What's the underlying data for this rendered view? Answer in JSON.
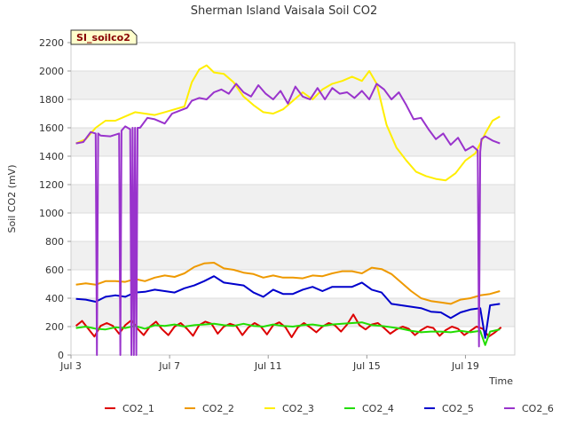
{
  "chart_data": {
    "type": "line",
    "title": "Sherman Island Vaisala Soil CO2",
    "ylabel": "Soil CO2 (mV)",
    "xlabel": "Time",
    "tag": "SI_soilco2",
    "ylim": [
      0,
      2200
    ],
    "yticks": [
      0,
      200,
      400,
      600,
      800,
      1000,
      1200,
      1400,
      1600,
      1800,
      2000,
      2200
    ],
    "xlim": [
      3.0,
      21.0
    ],
    "xticks": [
      {
        "value": 3,
        "label": "Jul 3"
      },
      {
        "value": 7,
        "label": "Jul 7"
      },
      {
        "value": 11,
        "label": "Jul 11"
      },
      {
        "value": 15,
        "label": "Jul 15"
      },
      {
        "value": 19,
        "label": "Jul 19"
      }
    ],
    "grid": true,
    "legend_position": "bottom",
    "series": [
      {
        "name": "CO2_1",
        "color": "#dd0000",
        "x": [
          3.2,
          3.45,
          3.7,
          3.95,
          4.2,
          4.45,
          4.7,
          4.95,
          5.2,
          5.45,
          5.7,
          5.95,
          6.2,
          6.45,
          6.7,
          6.95,
          7.2,
          7.45,
          7.7,
          7.95,
          8.2,
          8.45,
          8.7,
          8.95,
          9.2,
          9.45,
          9.7,
          9.95,
          10.2,
          10.45,
          10.7,
          10.95,
          11.2,
          11.45,
          11.7,
          11.95,
          12.2,
          12.45,
          12.7,
          12.95,
          13.2,
          13.45,
          13.7,
          13.95,
          14.2,
          14.45,
          14.7,
          14.95,
          15.2,
          15.45,
          15.7,
          15.95,
          16.2,
          16.45,
          16.7,
          16.95,
          17.2,
          17.45,
          17.7,
          17.95,
          18.2,
          18.45,
          18.7,
          18.95,
          19.2,
          19.45,
          19.7,
          19.95,
          20.2,
          20.45
        ],
        "y": [
          205,
          240,
          185,
          130,
          205,
          225,
          205,
          150,
          210,
          245,
          185,
          140,
          200,
          235,
          180,
          140,
          200,
          225,
          185,
          135,
          210,
          235,
          220,
          150,
          200,
          220,
          205,
          140,
          195,
          225,
          200,
          145,
          210,
          230,
          195,
          125,
          195,
          225,
          195,
          160,
          200,
          225,
          210,
          165,
          215,
          285,
          210,
          180,
          215,
          225,
          190,
          150,
          180,
          200,
          185,
          140,
          175,
          200,
          190,
          135,
          175,
          200,
          185,
          140,
          170,
          200,
          185,
          130,
          160,
          195
        ]
      },
      {
        "name": "CO2_2",
        "color": "#ee9900",
        "x": [
          3.2,
          3.6,
          4.0,
          4.4,
          4.8,
          5.2,
          5.6,
          6.0,
          6.4,
          6.8,
          7.2,
          7.6,
          8.0,
          8.4,
          8.8,
          9.2,
          9.6,
          10.0,
          10.4,
          10.8,
          11.2,
          11.6,
          12.0,
          12.4,
          12.8,
          13.2,
          13.6,
          14.0,
          14.4,
          14.8,
          15.2,
          15.6,
          16.0,
          16.4,
          16.8,
          17.2,
          17.6,
          18.0,
          18.4,
          18.8,
          19.2,
          19.6,
          20.0,
          20.4
        ],
        "y": [
          495,
          505,
          495,
          520,
          520,
          515,
          535,
          520,
          545,
          560,
          550,
          575,
          620,
          645,
          650,
          610,
          600,
          580,
          570,
          545,
          560,
          545,
          545,
          540,
          560,
          555,
          575,
          590,
          590,
          575,
          615,
          605,
          570,
          510,
          450,
          400,
          380,
          370,
          360,
          390,
          400,
          420,
          430,
          450
        ]
      },
      {
        "name": "CO2_3",
        "color": "#ffee00",
        "x": [
          3.2,
          3.6,
          4.0,
          4.4,
          4.8,
          5.2,
          5.6,
          6.0,
          6.4,
          6.8,
          7.2,
          7.6,
          7.9,
          8.2,
          8.5,
          8.8,
          9.2,
          9.6,
          10.0,
          10.4,
          10.8,
          11.2,
          11.6,
          12.0,
          12.4,
          12.8,
          13.2,
          13.6,
          14.0,
          14.4,
          14.8,
          15.1,
          15.4,
          15.8,
          16.2,
          16.6,
          17.0,
          17.4,
          17.8,
          18.2,
          18.6,
          19.0,
          19.4,
          19.8,
          20.1,
          20.4
        ],
        "y": [
          1490,
          1520,
          1600,
          1650,
          1650,
          1680,
          1710,
          1700,
          1690,
          1710,
          1730,
          1750,
          1920,
          2010,
          2040,
          1990,
          1980,
          1920,
          1820,
          1760,
          1710,
          1700,
          1730,
          1790,
          1850,
          1800,
          1870,
          1910,
          1930,
          1960,
          1930,
          2000,
          1910,
          1620,
          1460,
          1370,
          1290,
          1260,
          1240,
          1230,
          1280,
          1370,
          1420,
          1560,
          1650,
          1680
        ]
      },
      {
        "name": "CO2_4",
        "color": "#22dd00",
        "x": [
          3.2,
          3.6,
          4.0,
          4.4,
          4.8,
          5.2,
          5.6,
          6.0,
          6.4,
          6.8,
          7.2,
          7.6,
          8.0,
          8.4,
          8.8,
          9.2,
          9.6,
          10.0,
          10.4,
          10.8,
          11.2,
          11.6,
          12.0,
          12.4,
          12.8,
          13.2,
          13.6,
          14.0,
          14.4,
          14.8,
          15.2,
          15.6,
          16.0,
          16.4,
          16.8,
          17.2,
          17.6,
          18.0,
          18.4,
          18.8,
          19.2,
          19.6,
          19.8,
          20.0,
          20.4
        ],
        "y": [
          190,
          200,
          185,
          180,
          195,
          190,
          205,
          185,
          210,
          205,
          215,
          200,
          210,
          215,
          220,
          210,
          205,
          220,
          205,
          200,
          215,
          205,
          200,
          210,
          215,
          205,
          215,
          220,
          225,
          230,
          210,
          205,
          195,
          185,
          170,
          160,
          165,
          165,
          160,
          170,
          160,
          170,
          70,
          165,
          180
        ]
      },
      {
        "name": "CO2_5",
        "color": "#0000cc",
        "x": [
          3.2,
          3.6,
          4.0,
          4.4,
          4.8,
          5.2,
          5.6,
          6.0,
          6.4,
          6.8,
          7.2,
          7.6,
          8.0,
          8.4,
          8.8,
          9.2,
          9.6,
          10.0,
          10.4,
          10.8,
          11.2,
          11.6,
          12.0,
          12.4,
          12.8,
          13.2,
          13.6,
          14.0,
          14.4,
          14.8,
          15.2,
          15.6,
          16.0,
          16.4,
          16.8,
          17.2,
          17.6,
          18.0,
          18.4,
          18.8,
          19.2,
          19.6,
          19.8,
          20.0,
          20.4
        ],
        "y": [
          395,
          390,
          375,
          410,
          420,
          410,
          440,
          445,
          460,
          450,
          440,
          470,
          490,
          520,
          555,
          510,
          500,
          490,
          440,
          410,
          460,
          430,
          430,
          460,
          480,
          450,
          480,
          480,
          480,
          510,
          460,
          440,
          360,
          350,
          340,
          330,
          305,
          300,
          260,
          300,
          320,
          330,
          120,
          350,
          360
        ]
      },
      {
        "name": "CO2_6",
        "color": "#9933cc",
        "x": [
          3.2,
          3.5,
          3.8,
          4.0,
          4.05,
          4.1,
          4.2,
          4.6,
          4.95,
          5.0,
          5.05,
          5.2,
          5.4,
          5.45,
          5.5,
          5.55,
          5.6,
          5.65,
          5.7,
          5.8,
          6.1,
          6.4,
          6.8,
          7.1,
          7.4,
          7.7,
          7.9,
          8.2,
          8.5,
          8.8,
          9.1,
          9.4,
          9.7,
          10.0,
          10.3,
          10.6,
          10.9,
          11.2,
          11.5,
          11.8,
          12.1,
          12.4,
          12.7,
          13.0,
          13.3,
          13.6,
          13.9,
          14.2,
          14.5,
          14.8,
          15.1,
          15.4,
          15.7,
          16.0,
          16.3,
          16.6,
          16.9,
          17.2,
          17.5,
          17.8,
          18.1,
          18.4,
          18.7,
          19.0,
          19.3,
          19.5,
          19.55,
          19.6,
          19.65,
          19.8,
          20.1,
          20.4
        ],
        "y": [
          1490,
          1500,
          1570,
          1560,
          0,
          1560,
          1545,
          1540,
          1560,
          0,
          1580,
          1610,
          1590,
          0,
          1600,
          0,
          1600,
          0,
          1600,
          1600,
          1670,
          1660,
          1630,
          1700,
          1720,
          1740,
          1790,
          1810,
          1800,
          1850,
          1870,
          1840,
          1910,
          1850,
          1820,
          1900,
          1840,
          1800,
          1860,
          1770,
          1890,
          1820,
          1800,
          1880,
          1800,
          1880,
          1840,
          1850,
          1810,
          1860,
          1800,
          1910,
          1870,
          1800,
          1850,
          1760,
          1660,
          1670,
          1590,
          1520,
          1560,
          1480,
          1530,
          1440,
          1470,
          1440,
          60,
          1430,
          1520,
          1540,
          1510,
          1490
        ]
      }
    ]
  }
}
